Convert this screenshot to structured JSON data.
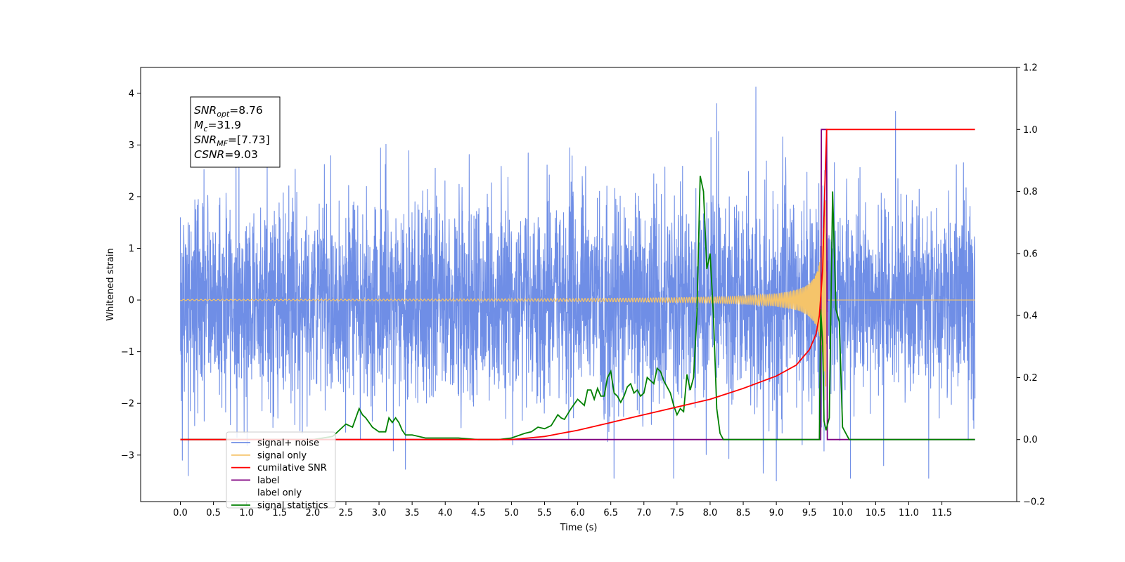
{
  "chart_data": {
    "type": "line",
    "xlabel": "Time (s)",
    "ylabel": "Whitened strain",
    "xlim": [
      -0.6,
      12.63
    ],
    "ylim": [
      -3.9,
      4.5
    ],
    "y2lim": [
      -0.2,
      1.2
    ],
    "x_ticks": [
      "0.0",
      "0.5",
      "1.0",
      "1.5",
      "2.0",
      "2.5",
      "3.0",
      "3.5",
      "4.0",
      "4.5",
      "5.0",
      "5.5",
      "6.0",
      "6.5",
      "7.0",
      "7.5",
      "8.0",
      "8.5",
      "9.0",
      "9.5",
      "10.0",
      "10.5",
      "11.0",
      "11.5"
    ],
    "y_ticks": [
      "−3",
      "−2",
      "−1",
      "0",
      "1",
      "2",
      "3",
      "4"
    ],
    "y2_ticks": [
      "−0.2",
      "0.0",
      "0.2",
      "0.4",
      "0.6",
      "0.8",
      "1.0",
      "1.2"
    ],
    "annotation": {
      "lines": [
        {
          "base": "SNR",
          "sub": "opt",
          "value": "=8.76"
        },
        {
          "base": "M",
          "sub": "c",
          "value": "=31.9"
        },
        {
          "base": "SNR",
          "sub": "MF",
          "value": "=[7.73]"
        },
        {
          "base": "CSNR",
          "sub": "",
          "value": "=9.03"
        }
      ]
    },
    "legend": {
      "position": "lower-left",
      "entries": [
        {
          "label": "signal+ noise",
          "color": "#6f8ee6"
        },
        {
          "label": "signal only",
          "color": "#f5c46a"
        },
        {
          "label": "cumilative SNR",
          "color": "#ff0000"
        },
        {
          "label": "label",
          "color": "#800080"
        },
        {
          "label": "label only",
          "color": "#ffffff"
        },
        {
          "label": "signal statistics",
          "color": "#008000"
        }
      ]
    },
    "series": [
      {
        "name": "signal+ noise",
        "axis": "left",
        "color": "#6f8ee6",
        "x_range": [
          0.0,
          12.0
        ],
        "noise_std": 1.0,
        "visible_extremes": [
          [
            0.0,
            1.6
          ],
          [
            0.03,
            -3.1
          ],
          [
            0.12,
            -3.4
          ],
          [
            8.69,
            4.12
          ],
          [
            8.1,
            3.8
          ],
          [
            10.8,
            3.65
          ],
          [
            9.0,
            -3.5
          ],
          [
            6.55,
            -3.45
          ],
          [
            7.45,
            -3.45
          ],
          [
            10.12,
            -3.45
          ],
          [
            11.3,
            -3.45
          ]
        ]
      },
      {
        "name": "signal only",
        "axis": "left",
        "color": "#f5c46a",
        "chirp": {
          "t_merger": 9.73,
          "peak_amplitude": 2.0,
          "end": 9.77
        }
      },
      {
        "name": "cumilative SNR",
        "axis": "right",
        "color": "#ff0000",
        "x": [
          0.0,
          5.0,
          5.5,
          6.0,
          6.5,
          7.0,
          7.5,
          8.0,
          8.5,
          9.0,
          9.3,
          9.5,
          9.6,
          9.65,
          9.7,
          9.73,
          9.76,
          12.0
        ],
        "y": [
          0.0,
          0.0,
          0.01,
          0.03,
          0.055,
          0.08,
          0.105,
          0.13,
          0.165,
          0.205,
          0.24,
          0.29,
          0.34,
          0.4,
          0.55,
          0.8,
          1.0,
          1.0
        ]
      },
      {
        "name": "label",
        "axis": "right",
        "color": "#800080",
        "x": [
          0.0,
          9.67,
          9.68,
          9.76,
          9.77,
          12.0
        ],
        "y": [
          0.0,
          0.0,
          1.0,
          1.0,
          0.0,
          0.0
        ]
      },
      {
        "name": "signal statistics",
        "axis": "right",
        "color": "#008000",
        "x": [
          0.0,
          2.0,
          2.3,
          2.5,
          2.6,
          2.7,
          2.75,
          2.8,
          2.9,
          3.0,
          3.1,
          3.15,
          3.2,
          3.25,
          3.3,
          3.35,
          3.4,
          3.5,
          3.7,
          3.9,
          4.0,
          4.2,
          4.5,
          4.8,
          5.0,
          5.2,
          5.3,
          5.4,
          5.5,
          5.6,
          5.7,
          5.75,
          5.8,
          5.9,
          6.0,
          6.1,
          6.15,
          6.2,
          6.25,
          6.3,
          6.35,
          6.4,
          6.45,
          6.5,
          6.55,
          6.6,
          6.65,
          6.7,
          6.75,
          6.8,
          6.85,
          6.9,
          6.95,
          7.0,
          7.05,
          7.1,
          7.15,
          7.2,
          7.25,
          7.3,
          7.35,
          7.4,
          7.45,
          7.5,
          7.55,
          7.6,
          7.65,
          7.7,
          7.75,
          7.8,
          7.85,
          7.9,
          7.95,
          8.0,
          8.05,
          8.1,
          8.15,
          8.2,
          8.25,
          8.3,
          8.35,
          8.4,
          8.5,
          9.0,
          9.5,
          9.65,
          9.67,
          9.7,
          9.72,
          9.75,
          9.8,
          9.85,
          9.9,
          9.95,
          10.0,
          10.05,
          10.1,
          10.2,
          10.3,
          10.5,
          11.0,
          12.0
        ],
        "y": [
          0.0,
          0.0,
          0.01,
          0.05,
          0.04,
          0.1,
          0.08,
          0.07,
          0.04,
          0.025,
          0.025,
          0.07,
          0.055,
          0.07,
          0.055,
          0.03,
          0.015,
          0.015,
          0.005,
          0.005,
          0.005,
          0.005,
          0.0,
          0.0,
          0.005,
          0.02,
          0.025,
          0.04,
          0.035,
          0.045,
          0.08,
          0.07,
          0.065,
          0.1,
          0.13,
          0.11,
          0.16,
          0.16,
          0.13,
          0.165,
          0.14,
          0.14,
          0.2,
          0.22,
          0.15,
          0.14,
          0.12,
          0.14,
          0.17,
          0.18,
          0.15,
          0.16,
          0.14,
          0.15,
          0.2,
          0.19,
          0.18,
          0.23,
          0.22,
          0.19,
          0.17,
          0.15,
          0.11,
          0.08,
          0.1,
          0.09,
          0.21,
          0.16,
          0.2,
          0.4,
          0.85,
          0.8,
          0.55,
          0.6,
          0.4,
          0.1,
          0.02,
          0.0,
          0.0,
          0.0,
          0.0,
          0.0,
          0.0,
          0.0,
          0.0,
          0.0,
          0.42,
          0.31,
          0.06,
          0.03,
          0.07,
          0.8,
          0.42,
          0.38,
          0.04,
          0.02,
          0.0,
          0.0,
          0.0,
          0.0,
          0.0,
          0.0
        ]
      }
    ]
  }
}
